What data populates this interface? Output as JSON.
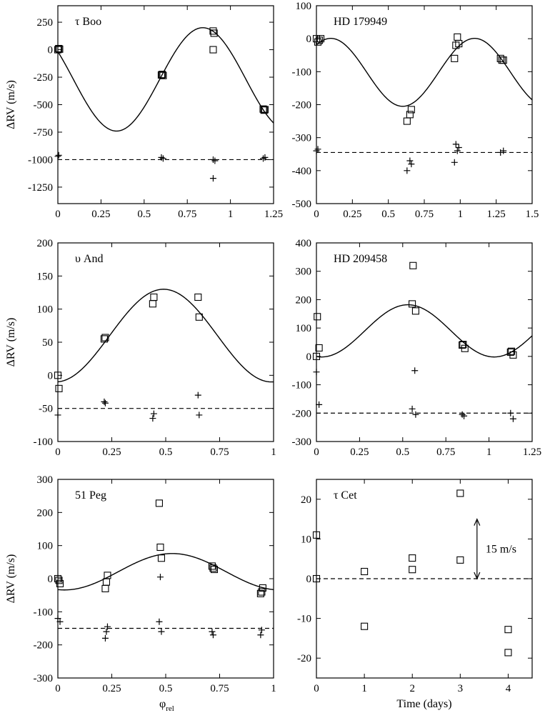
{
  "figure": {
    "xlabel": "φ",
    "xlabel_sub": "rel",
    "xlabel_right": "Time (days)",
    "ylabel": "ΔRV (m/s)"
  },
  "chart_data": [
    {
      "id": "tauboo",
      "type": "scatter",
      "title": "τ Boo",
      "xlim": [
        0,
        1.25
      ],
      "ylim": [
        -1400,
        400
      ],
      "xticks": [
        0,
        0.25,
        0.5,
        0.75,
        1,
        1.25
      ],
      "yticks": [
        250,
        0,
        -250,
        -500,
        -750,
        -1000,
        -1250
      ],
      "ylabel_shown": true,
      "curve": {
        "offset": -270,
        "amplitude": 470,
        "period": 1.0,
        "peak_at": 0.84
      },
      "dashed_level": -1000,
      "squares": [
        [
          0,
          0
        ],
        [
          0.005,
          10
        ],
        [
          0.01,
          5
        ],
        [
          0.6,
          -230
        ],
        [
          0.605,
          -225
        ],
        [
          0.61,
          -235
        ],
        [
          0.9,
          170
        ],
        [
          0.905,
          150
        ],
        [
          0.9,
          0
        ],
        [
          1.19,
          -540
        ],
        [
          1.195,
          -550
        ],
        [
          1.2,
          -545
        ]
      ],
      "pluses": [
        [
          0,
          -970
        ],
        [
          0.005,
          -960
        ],
        [
          0.6,
          -980
        ],
        [
          0.61,
          -990
        ],
        [
          0.9,
          -1000
        ],
        [
          0.91,
          -1010
        ],
        [
          0.9,
          -1170
        ],
        [
          1.19,
          -990
        ],
        [
          1.2,
          -980
        ]
      ]
    },
    {
      "id": "hd179949",
      "type": "scatter",
      "title": "HD 179949",
      "xlim": [
        0,
        1.5
      ],
      "ylim": [
        -500,
        100
      ],
      "xticks": [
        0,
        0.25,
        0.5,
        0.75,
        1,
        1.25,
        1.5
      ],
      "yticks": [
        100,
        0,
        -100,
        -200,
        -300,
        -400,
        -500
      ],
      "ylabel_shown": false,
      "curve": {
        "offset": -102,
        "amplitude": 103,
        "period": 1.0,
        "peak_at": 0.1
      },
      "dashed_level": -345,
      "squares": [
        [
          0,
          0
        ],
        [
          0.01,
          -10
        ],
        [
          0.02,
          -5
        ],
        [
          0.03,
          0
        ],
        [
          0.63,
          -250
        ],
        [
          0.65,
          -230
        ],
        [
          0.66,
          -215
        ],
        [
          0.96,
          -60
        ],
        [
          0.97,
          -20
        ],
        [
          0.98,
          5
        ],
        [
          0.99,
          -15
        ],
        [
          1.28,
          -60
        ],
        [
          1.29,
          -65
        ],
        [
          1.3,
          -65
        ]
      ],
      "pluses": [
        [
          0,
          -340
        ],
        [
          0.01,
          -335
        ],
        [
          0.63,
          -400
        ],
        [
          0.65,
          -370
        ],
        [
          0.66,
          -380
        ],
        [
          0.96,
          -375
        ],
        [
          0.97,
          -320
        ],
        [
          0.98,
          -340
        ],
        [
          0.99,
          -330
        ],
        [
          1.28,
          -345
        ],
        [
          1.3,
          -340
        ]
      ]
    },
    {
      "id": "upsand",
      "type": "scatter",
      "title": "υ And",
      "xlim": [
        0,
        1
      ],
      "ylim": [
        -100,
        200
      ],
      "xticks": [
        0,
        0.25,
        0.5,
        0.75,
        1
      ],
      "yticks": [
        200,
        150,
        100,
        50,
        0,
        -50,
        -100
      ],
      "ylabel_shown": true,
      "curve": {
        "offset": 60,
        "amplitude": 70,
        "period": 1.0,
        "peak_at": 0.49
      },
      "dashed_level": -50,
      "squares": [
        [
          0,
          0
        ],
        [
          0.005,
          -20
        ],
        [
          0.215,
          55
        ],
        [
          0.22,
          57
        ],
        [
          0.44,
          108
        ],
        [
          0.445,
          118
        ],
        [
          0.65,
          118
        ],
        [
          0.655,
          88
        ]
      ],
      "pluses": [
        [
          0,
          -60
        ],
        [
          0.215,
          -40
        ],
        [
          0.22,
          -42
        ],
        [
          0.44,
          -65
        ],
        [
          0.445,
          -58
        ],
        [
          0.65,
          -30
        ],
        [
          0.655,
          -60
        ]
      ]
    },
    {
      "id": "hd209458",
      "type": "scatter",
      "title": "HD 209458",
      "xlim": [
        0,
        1.25
      ],
      "ylim": [
        -300,
        400
      ],
      "xticks": [
        0,
        0.25,
        0.5,
        0.75,
        1,
        1.25
      ],
      "yticks": [
        400,
        300,
        200,
        100,
        0,
        -100,
        -200,
        -300
      ],
      "ylabel_shown": false,
      "curve": {
        "offset": 90,
        "amplitude": 92,
        "period": 1.0,
        "peak_at": 0.53
      },
      "dashed_level": -200,
      "squares": [
        [
          0,
          0
        ],
        [
          0.005,
          140
        ],
        [
          0.015,
          30
        ],
        [
          0.555,
          185
        ],
        [
          0.56,
          320
        ],
        [
          0.575,
          160
        ],
        [
          0.845,
          40
        ],
        [
          0.85,
          42
        ],
        [
          0.86,
          28
        ],
        [
          1.125,
          15
        ],
        [
          1.13,
          18
        ],
        [
          1.14,
          5
        ]
      ],
      "pluses": [
        [
          0,
          -55
        ],
        [
          0.015,
          -170
        ],
        [
          0.555,
          -185
        ],
        [
          0.57,
          -50
        ],
        [
          0.575,
          -205
        ],
        [
          0.845,
          -205
        ],
        [
          0.855,
          -210
        ],
        [
          1.125,
          -200
        ],
        [
          1.14,
          -220
        ]
      ]
    },
    {
      "id": "51peg",
      "type": "scatter",
      "title": "51 Peg",
      "xlim": [
        0,
        1
      ],
      "ylim": [
        -300,
        300
      ],
      "xticks": [
        0,
        0.25,
        0.5,
        0.75,
        1
      ],
      "yticks": [
        300,
        200,
        100,
        0,
        -100,
        -200,
        -300
      ],
      "ylabel_shown": true,
      "curve": {
        "offset": 21,
        "amplitude": 55,
        "period": 1.0,
        "peak_at": 0.53
      },
      "dashed_level": -150,
      "squares": [
        [
          0,
          0
        ],
        [
          0.005,
          -5
        ],
        [
          0.01,
          -15
        ],
        [
          0.22,
          -30
        ],
        [
          0.225,
          -10
        ],
        [
          0.23,
          10
        ],
        [
          0.47,
          228
        ],
        [
          0.475,
          95
        ],
        [
          0.48,
          62
        ],
        [
          0.715,
          38
        ],
        [
          0.72,
          32
        ],
        [
          0.725,
          28
        ],
        [
          0.94,
          -45
        ],
        [
          0.945,
          -40
        ],
        [
          0.95,
          -28
        ]
      ],
      "pluses": [
        [
          0,
          -120
        ],
        [
          0.01,
          -130
        ],
        [
          0.22,
          -180
        ],
        [
          0.225,
          -160
        ],
        [
          0.23,
          -145
        ],
        [
          0.47,
          -130
        ],
        [
          0.475,
          5
        ],
        [
          0.48,
          -160
        ],
        [
          0.715,
          -160
        ],
        [
          0.72,
          -170
        ],
        [
          0.94,
          -170
        ],
        [
          0.945,
          -155
        ]
      ]
    },
    {
      "id": "taucet",
      "type": "scatter",
      "title": "τ Cet",
      "xlim": [
        0,
        4.5
      ],
      "ylim": [
        -25,
        25
      ],
      "xticks": [
        0,
        1,
        2,
        3,
        4
      ],
      "yticks": [
        20,
        10,
        0,
        -10,
        -20
      ],
      "ylabel_shown": false,
      "curve": null,
      "dashed_level": 0,
      "squares": [
        [
          0,
          11
        ],
        [
          0,
          0
        ],
        [
          1,
          1.8
        ],
        [
          1,
          -12
        ],
        [
          2,
          5.2
        ],
        [
          2,
          2.3
        ],
        [
          3,
          21.5
        ],
        [
          3,
          4.7
        ],
        [
          4,
          -12.8
        ],
        [
          4,
          -18.6
        ]
      ],
      "pluses": [],
      "annotation": {
        "text": "15 m/s",
        "x": 3.35,
        "y_from": 0,
        "y_to": 15
      }
    }
  ]
}
